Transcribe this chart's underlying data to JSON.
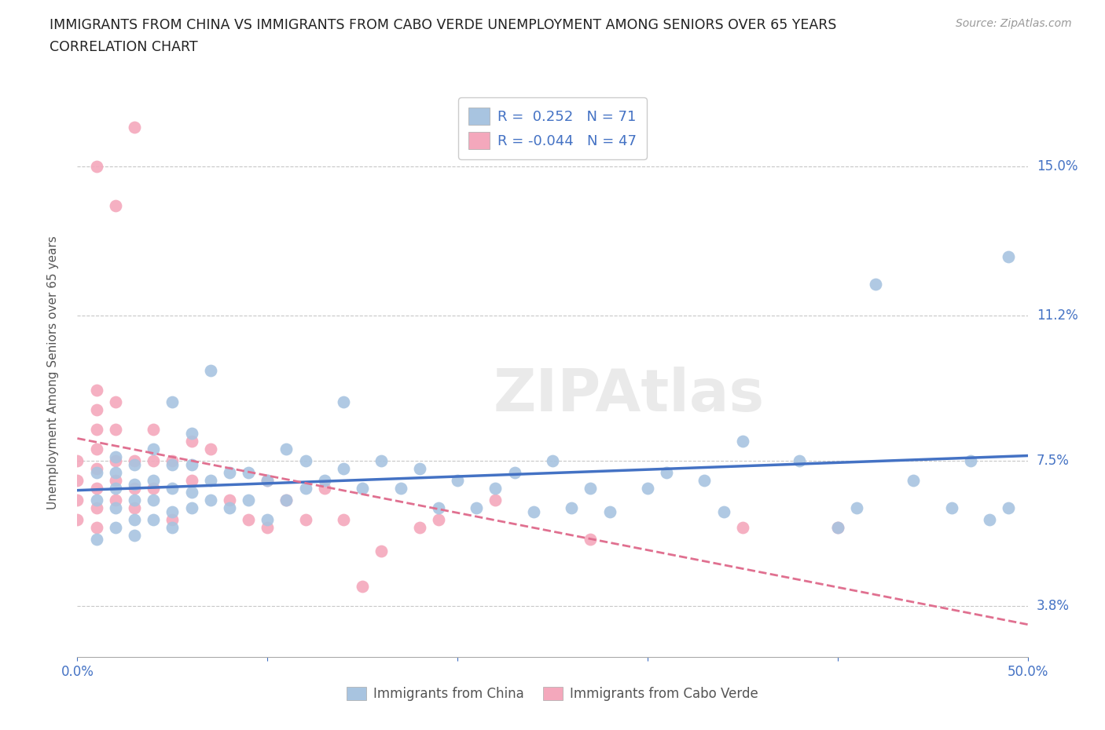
{
  "title_line1": "IMMIGRANTS FROM CHINA VS IMMIGRANTS FROM CABO VERDE UNEMPLOYMENT AMONG SENIORS OVER 65 YEARS",
  "title_line2": "CORRELATION CHART",
  "source": "Source: ZipAtlas.com",
  "ylabel": "Unemployment Among Seniors over 65 years",
  "xlim": [
    0.0,
    0.5
  ],
  "ylim": [
    0.025,
    0.17
  ],
  "yticks": [
    0.038,
    0.075,
    0.112,
    0.15
  ],
  "ytick_labels": [
    "3.8%",
    "7.5%",
    "11.2%",
    "15.0%"
  ],
  "xticks": [
    0.0,
    0.1,
    0.2,
    0.3,
    0.4,
    0.5
  ],
  "xtick_labels": [
    "0.0%",
    "",
    "",
    "",
    "",
    "50.0%"
  ],
  "china_color": "#A8C4E0",
  "cabo_verde_color": "#F4A8BC",
  "china_line_color": "#4472C4",
  "cabo_verde_line_color": "#E07090",
  "china_R": 0.252,
  "china_N": 71,
  "cabo_verde_R": -0.044,
  "cabo_verde_N": 47,
  "legend_label_china": "Immigrants from China",
  "legend_label_cabo": "Immigrants from Cabo Verde",
  "watermark": "ZIPAtlas",
  "china_x": [
    0.01,
    0.01,
    0.01,
    0.02,
    0.02,
    0.02,
    0.02,
    0.02,
    0.03,
    0.03,
    0.03,
    0.03,
    0.03,
    0.04,
    0.04,
    0.04,
    0.04,
    0.05,
    0.05,
    0.05,
    0.05,
    0.05,
    0.06,
    0.06,
    0.06,
    0.06,
    0.07,
    0.07,
    0.07,
    0.08,
    0.08,
    0.09,
    0.09,
    0.1,
    0.1,
    0.11,
    0.11,
    0.12,
    0.12,
    0.13,
    0.14,
    0.14,
    0.15,
    0.16,
    0.17,
    0.18,
    0.19,
    0.2,
    0.21,
    0.22,
    0.23,
    0.24,
    0.25,
    0.26,
    0.27,
    0.28,
    0.3,
    0.31,
    0.33,
    0.34,
    0.35,
    0.38,
    0.4,
    0.41,
    0.42,
    0.44,
    0.46,
    0.47,
    0.48,
    0.49,
    0.49
  ],
  "china_y": [
    0.055,
    0.065,
    0.072,
    0.058,
    0.063,
    0.068,
    0.072,
    0.076,
    0.056,
    0.06,
    0.065,
    0.069,
    0.074,
    0.06,
    0.065,
    0.07,
    0.078,
    0.058,
    0.062,
    0.068,
    0.074,
    0.09,
    0.063,
    0.067,
    0.074,
    0.082,
    0.065,
    0.07,
    0.098,
    0.063,
    0.072,
    0.065,
    0.072,
    0.06,
    0.07,
    0.065,
    0.078,
    0.068,
    0.075,
    0.07,
    0.09,
    0.073,
    0.068,
    0.075,
    0.068,
    0.073,
    0.063,
    0.07,
    0.063,
    0.068,
    0.072,
    0.062,
    0.075,
    0.063,
    0.068,
    0.062,
    0.068,
    0.072,
    0.07,
    0.062,
    0.08,
    0.075,
    0.058,
    0.063,
    0.12,
    0.07,
    0.063,
    0.075,
    0.06,
    0.127,
    0.063
  ],
  "cabo_x": [
    0.0,
    0.0,
    0.0,
    0.0,
    0.01,
    0.01,
    0.01,
    0.01,
    0.01,
    0.01,
    0.01,
    0.01,
    0.01,
    0.02,
    0.02,
    0.02,
    0.02,
    0.02,
    0.02,
    0.03,
    0.03,
    0.03,
    0.03,
    0.04,
    0.04,
    0.04,
    0.05,
    0.05,
    0.06,
    0.06,
    0.07,
    0.08,
    0.09,
    0.1,
    0.1,
    0.11,
    0.12,
    0.13,
    0.14,
    0.15,
    0.16,
    0.18,
    0.19,
    0.22,
    0.27,
    0.35,
    0.4
  ],
  "cabo_y": [
    0.06,
    0.065,
    0.07,
    0.075,
    0.058,
    0.063,
    0.068,
    0.073,
    0.078,
    0.083,
    0.088,
    0.093,
    0.15,
    0.065,
    0.07,
    0.075,
    0.083,
    0.09,
    0.14,
    0.063,
    0.068,
    0.075,
    0.16,
    0.068,
    0.075,
    0.083,
    0.06,
    0.075,
    0.07,
    0.08,
    0.078,
    0.065,
    0.06,
    0.058,
    0.07,
    0.065,
    0.06,
    0.068,
    0.06,
    0.043,
    0.052,
    0.058,
    0.06,
    0.065,
    0.055,
    0.058,
    0.058
  ],
  "background_color": "#ffffff",
  "grid_color": "#c8c8c8",
  "text_color": "#4472C4",
  "title_color": "#222222"
}
